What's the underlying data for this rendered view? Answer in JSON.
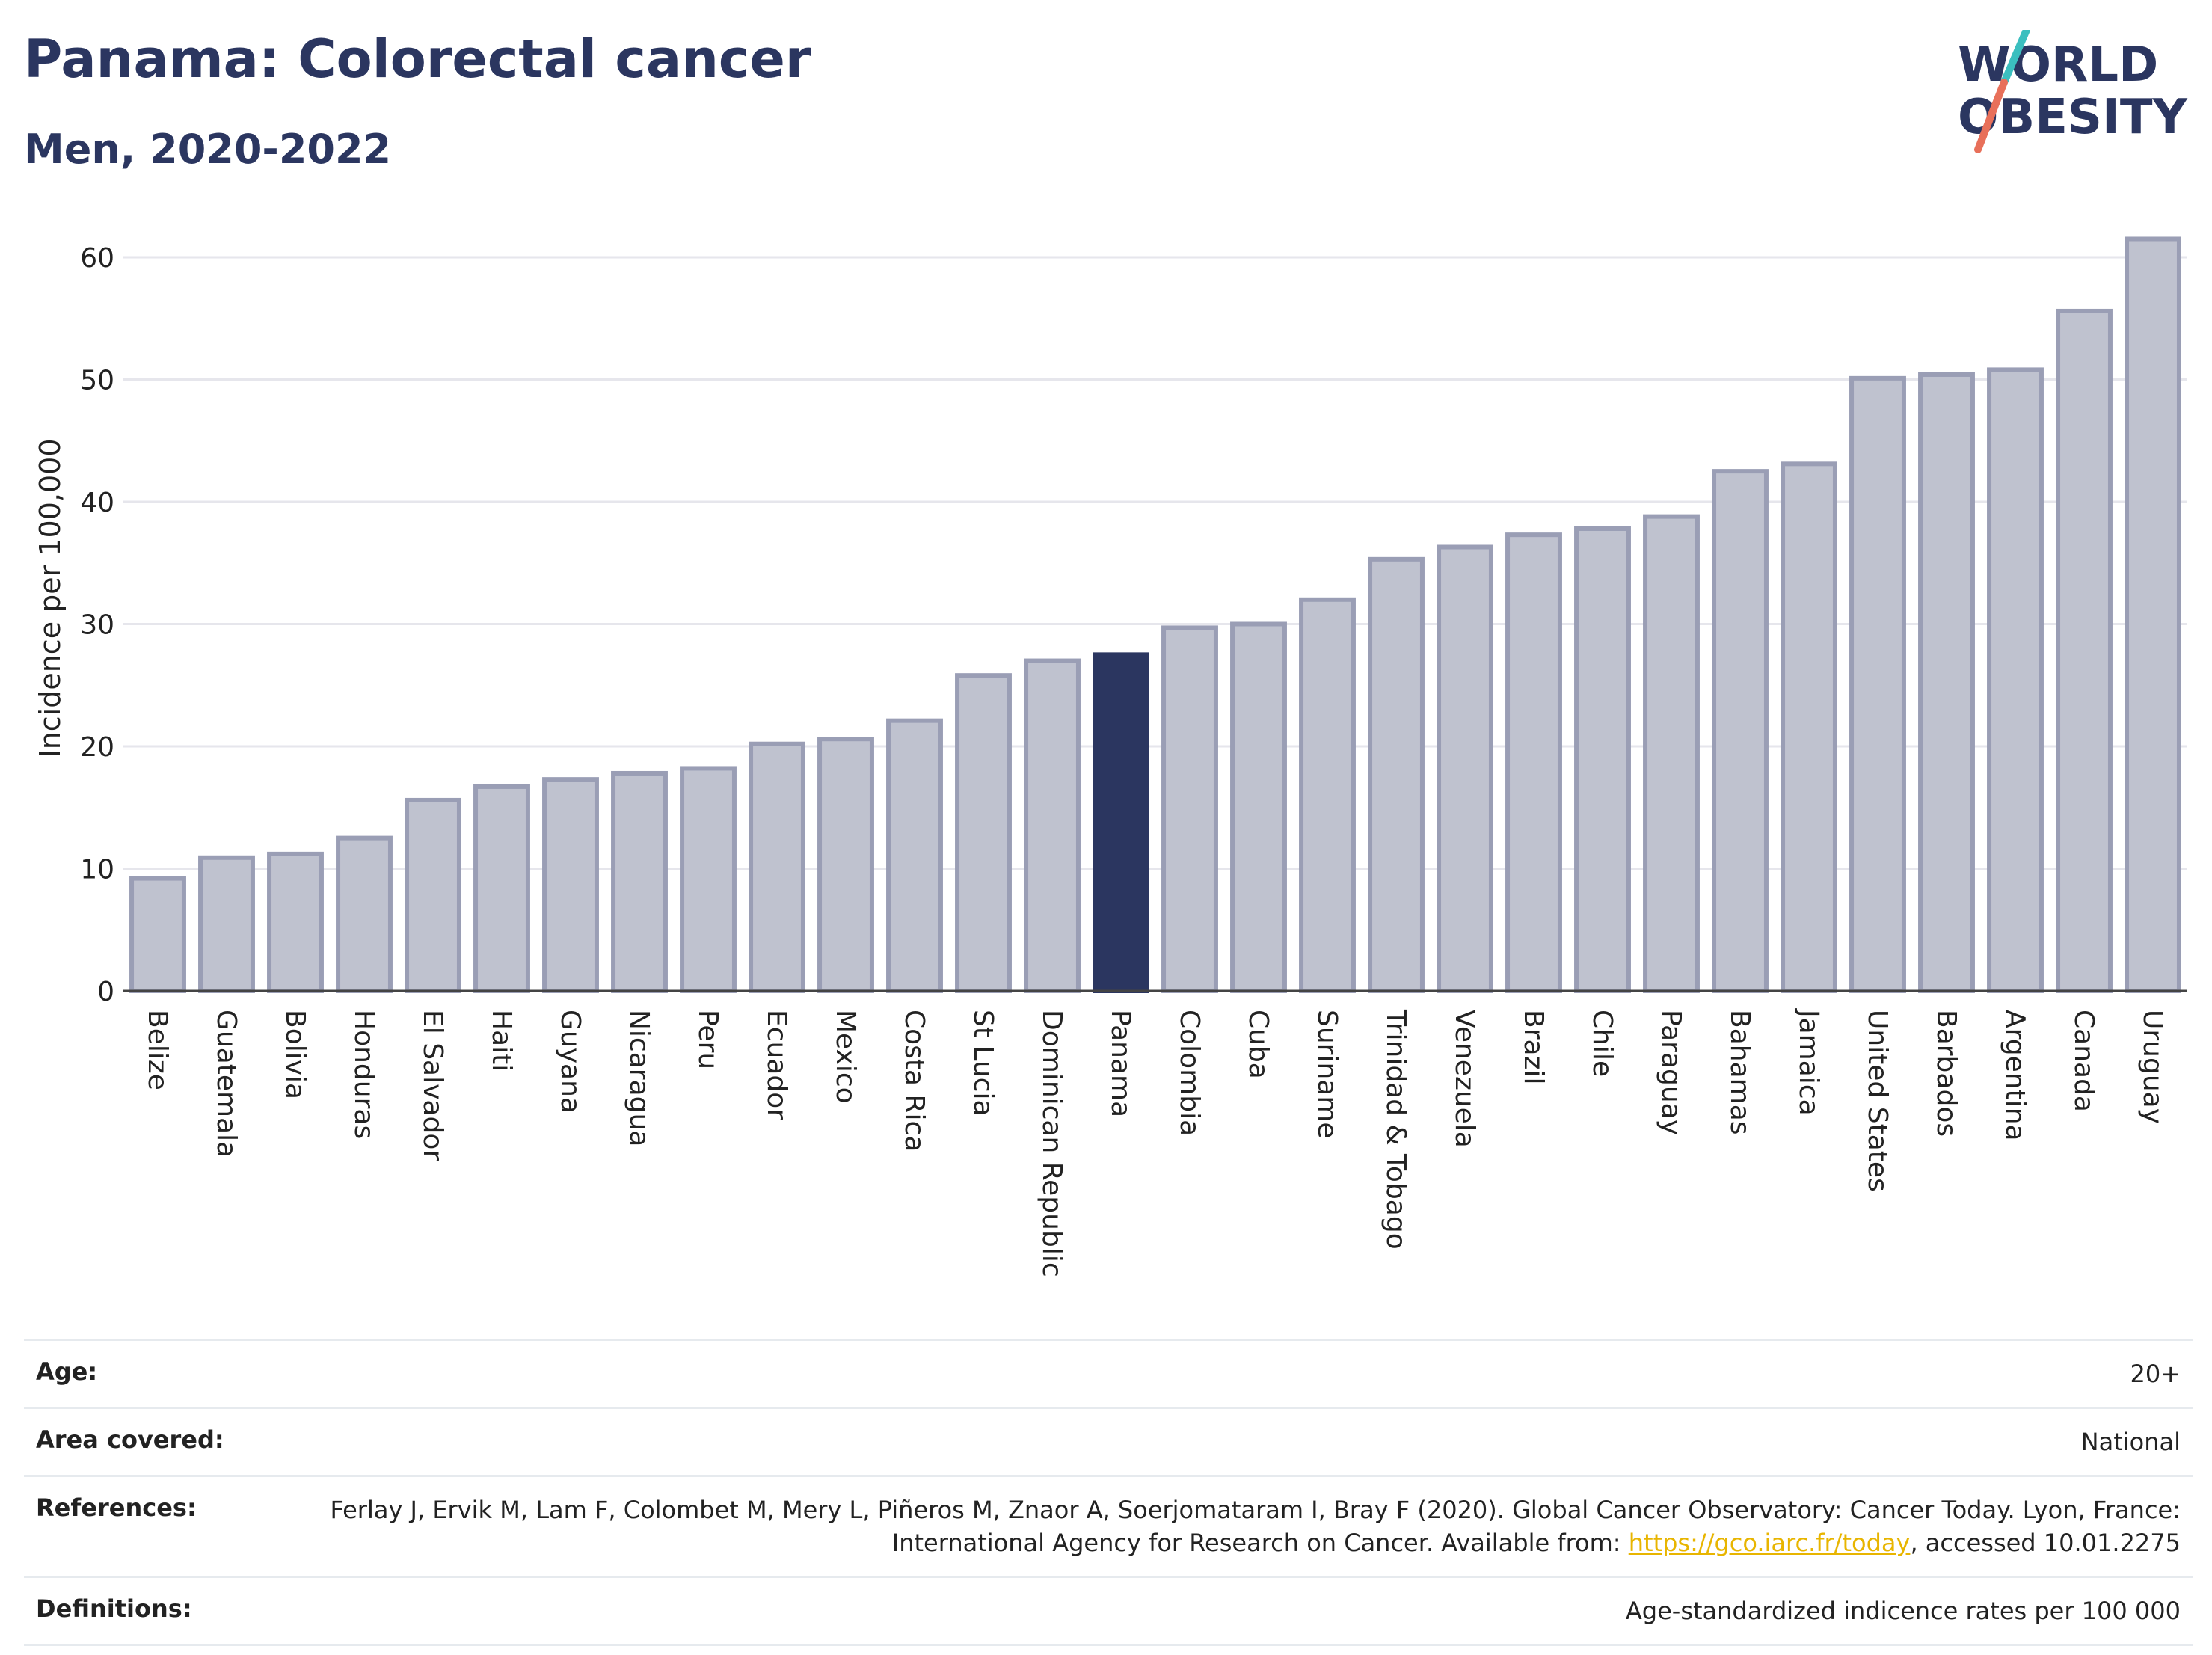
{
  "header": {
    "title": "Panama: Colorectal cancer",
    "subtitle": "Men, 2020-2022"
  },
  "logo": {
    "line1": "WORLD",
    "line2": "OBESITY",
    "slash_top_color": "#3bbfbf",
    "slash_bottom_color": "#e8705a",
    "text_color": "#2b3660"
  },
  "colors": {
    "bar": "#bfc2cf",
    "bar_border": "#9a9eb5",
    "highlight": "#2b3660",
    "grid": "#e6e6ec"
  },
  "chart_data": {
    "type": "bar",
    "ylabel": "Incidence per 100,000",
    "ylim": [
      0,
      64
    ],
    "yticks": [
      0,
      10,
      20,
      30,
      40,
      50,
      60
    ],
    "grid": true,
    "highlight": "Panama",
    "categories": [
      "Belize",
      "Guatemala",
      "Bolivia",
      "Honduras",
      "El Salvador",
      "Haiti",
      "Guyana",
      "Nicaragua",
      "Peru",
      "Ecuador",
      "Mexico",
      "Costa Rica",
      "St Lucia",
      "Dominican Republic",
      "Panama",
      "Colombia",
      "Cuba",
      "Suriname",
      "Trinidad & Tobago",
      "Venezuela",
      "Brazil",
      "Chile",
      "Paraguay",
      "Bahamas",
      "Jamaica",
      "United States",
      "Barbados",
      "Argentina",
      "Canada",
      "Uruguay"
    ],
    "values": [
      9.2,
      10.9,
      11.2,
      12.5,
      15.6,
      16.7,
      17.3,
      17.8,
      18.2,
      20.2,
      20.6,
      22.1,
      25.8,
      27.0,
      27.5,
      29.7,
      30.0,
      32.0,
      35.3,
      36.3,
      37.3,
      37.8,
      38.8,
      42.5,
      43.1,
      50.1,
      50.4,
      50.8,
      55.6,
      61.5
    ]
  },
  "info": {
    "age_label": "Age:",
    "age_value": "20+",
    "area_label": "Area covered:",
    "area_value": "National",
    "references_label": "References:",
    "references_text_1": "Ferlay J, Ervik M, Lam F, Colombet M, Mery L, Piñeros M, Znaor A, Soerjomataram I, Bray F (2020). Global Cancer Observatory: Cancer Today. Lyon, France: International Agency for Research on Cancer. Available from: ",
    "references_link": "https://gco.iarc.fr/today",
    "references_text_2": ", accessed 10.01.2275",
    "definitions_label": "Definitions:",
    "definitions_value": "Age-standardized indicence rates per 100 000"
  }
}
